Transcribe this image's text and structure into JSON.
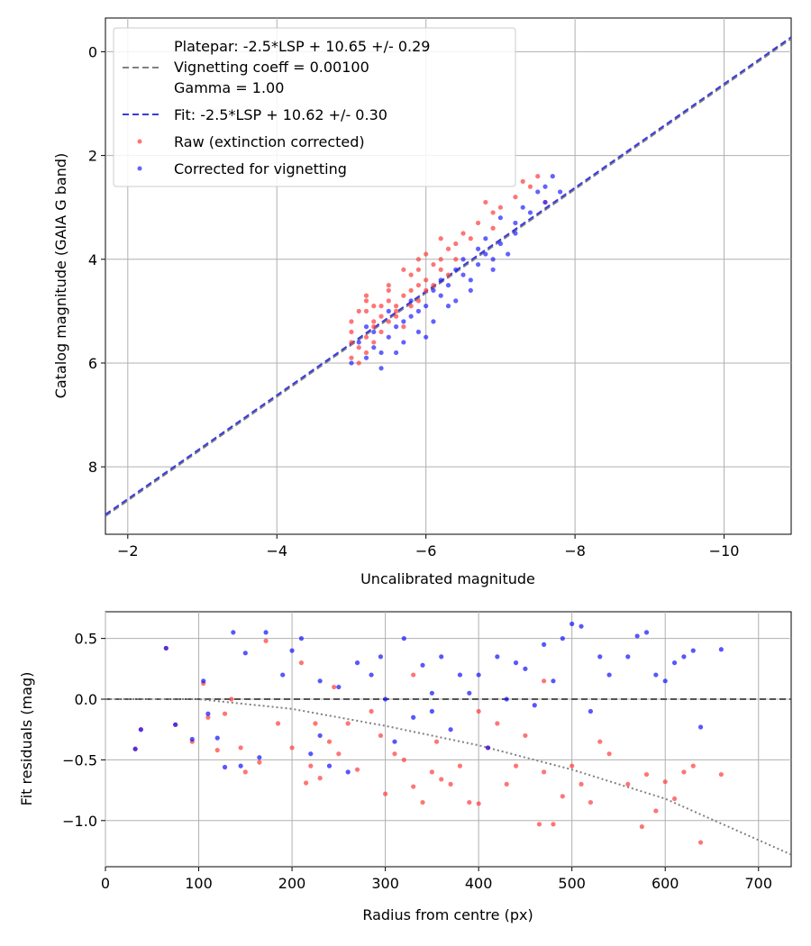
{
  "chart_data": [
    {
      "type": "scatter",
      "xlabel": "Uncalibrated magnitude",
      "ylabel": "Catalog magnitude (GAIA G band)",
      "xlim": [
        -1.7,
        -10.9
      ],
      "ylim": [
        9.3,
        -0.65
      ],
      "x_inverted": true,
      "y_inverted": true,
      "xticks": [
        -2,
        -4,
        -6,
        -8,
        -10
      ],
      "xtick_labels": [
        "−2",
        "−4",
        "−6",
        "−8",
        "−10"
      ],
      "yticks": [
        0,
        2,
        4,
        6,
        8
      ],
      "ytick_labels": [
        "0",
        "2",
        "4",
        "6",
        "8"
      ],
      "grid": true,
      "legend_position": "upper-left",
      "lines": [
        {
          "name": "Platepar",
          "slope": 1.0,
          "intercept": 10.65,
          "color": "#808080",
          "style": "dashed",
          "legend": [
            "Platepar: -2.5*LSP + 10.65 +/- 0.29",
            "Vignetting coeff = 0.00100",
            "Gamma = 1.00"
          ]
        },
        {
          "name": "Fit",
          "slope": 1.0,
          "intercept": 10.62,
          "color": "#3a3ae0",
          "style": "dashed",
          "legend": [
            "Fit: -2.5*LSP + 10.62 +/- 0.30"
          ]
        }
      ],
      "series": [
        {
          "name": "Raw (extinction corrected)",
          "color": "#ff3b3b",
          "points": [
            [
              -5.0,
              5.9
            ],
            [
              -5.1,
              5.7
            ],
            [
              -5.2,
              5.5
            ],
            [
              -5.0,
              5.4
            ],
            [
              -5.3,
              5.2
            ],
            [
              -5.2,
              5.0
            ],
            [
              -5.4,
              4.9
            ],
            [
              -5.5,
              4.8
            ],
            [
              -5.3,
              5.6
            ],
            [
              -5.6,
              5.1
            ],
            [
              -5.7,
              4.7
            ],
            [
              -5.8,
              4.6
            ],
            [
              -5.6,
              4.9
            ],
            [
              -5.9,
              4.5
            ],
            [
              -6.0,
              4.4
            ],
            [
              -5.9,
              4.2
            ],
            [
              -6.1,
              4.1
            ],
            [
              -6.2,
              4.0
            ],
            [
              -6.0,
              4.6
            ],
            [
              -5.7,
              5.3
            ],
            [
              -5.4,
              5.4
            ],
            [
              -5.1,
              5.0
            ],
            [
              -5.2,
              4.8
            ],
            [
              -5.5,
              4.6
            ],
            [
              -5.8,
              4.3
            ],
            [
              -6.3,
              3.8
            ],
            [
              -6.4,
              3.7
            ],
            [
              -6.5,
              3.5
            ],
            [
              -6.7,
              3.3
            ],
            [
              -6.9,
              3.1
            ],
            [
              -7.0,
              3.0
            ],
            [
              -7.2,
              2.8
            ],
            [
              -7.4,
              2.6
            ],
            [
              -7.5,
              2.4
            ],
            [
              -6.6,
              3.6
            ],
            [
              -6.2,
              4.2
            ],
            [
              -5.9,
              4.8
            ],
            [
              -5.6,
              5.0
            ],
            [
              -5.3,
              5.3
            ],
            [
              -5.0,
              5.6
            ],
            [
              -5.1,
              6.0
            ],
            [
              -5.4,
              5.1
            ],
            [
              -5.8,
              4.9
            ],
            [
              -6.1,
              4.5
            ],
            [
              -6.3,
              4.3
            ],
            [
              -5.5,
              4.5
            ],
            [
              -5.2,
              4.7
            ],
            [
              -5.9,
              4.0
            ],
            [
              -6.0,
              3.9
            ],
            [
              -6.4,
              4.0
            ],
            [
              -5.7,
              4.2
            ],
            [
              -5.5,
              5.2
            ],
            [
              -5.3,
              4.9
            ],
            [
              -6.2,
              3.6
            ],
            [
              -6.8,
              2.9
            ],
            [
              -7.6,
              2.9
            ],
            [
              -7.3,
              2.5
            ],
            [
              -6.9,
              3.4
            ],
            [
              -5.0,
              5.2
            ],
            [
              -5.2,
              5.8
            ]
          ]
        },
        {
          "name": "Corrected for vignetting",
          "color": "#2020ff",
          "points": [
            [
              -5.0,
              6.0
            ],
            [
              -5.2,
              5.9
            ],
            [
              -5.3,
              5.7
            ],
            [
              -5.5,
              5.5
            ],
            [
              -5.6,
              5.3
            ],
            [
              -5.8,
              5.1
            ],
            [
              -6.0,
              4.9
            ],
            [
              -6.2,
              4.7
            ],
            [
              -6.3,
              4.5
            ],
            [
              -6.5,
              4.3
            ],
            [
              -6.7,
              4.1
            ],
            [
              -6.8,
              3.9
            ],
            [
              -7.0,
              3.7
            ],
            [
              -7.2,
              3.5
            ],
            [
              -7.4,
              3.1
            ],
            [
              -7.6,
              2.9
            ],
            [
              -7.8,
              2.7
            ],
            [
              -7.7,
              2.4
            ],
            [
              -7.5,
              2.7
            ],
            [
              -5.4,
              6.1
            ],
            [
              -5.7,
              5.6
            ],
            [
              -5.9,
              5.4
            ],
            [
              -6.1,
              5.2
            ],
            [
              -6.4,
              4.8
            ],
            [
              -6.6,
              4.6
            ],
            [
              -6.9,
              4.2
            ],
            [
              -7.1,
              3.9
            ],
            [
              -5.1,
              5.6
            ],
            [
              -5.5,
              5.0
            ],
            [
              -5.8,
              4.8
            ],
            [
              -6.2,
              4.4
            ],
            [
              -6.5,
              4.0
            ],
            [
              -6.8,
              3.6
            ],
            [
              -7.0,
              3.2
            ],
            [
              -7.3,
              3.0
            ],
            [
              -5.6,
              5.8
            ],
            [
              -5.9,
              5.0
            ],
            [
              -6.3,
              4.9
            ],
            [
              -6.6,
              4.4
            ],
            [
              -6.0,
              5.5
            ],
            [
              -5.3,
              5.4
            ],
            [
              -6.7,
              3.8
            ],
            [
              -5.7,
              5.2
            ],
            [
              -6.1,
              4.6
            ],
            [
              -6.4,
              4.2
            ],
            [
              -5.2,
              5.3
            ],
            [
              -5.4,
              5.8
            ],
            [
              -6.9,
              4.0
            ],
            [
              -7.2,
              3.3
            ],
            [
              -7.6,
              2.6
            ]
          ]
        }
      ]
    },
    {
      "type": "scatter",
      "xlabel": "Radius from centre (px)",
      "ylabel": "Fit residuals (mag)",
      "xlim": [
        0,
        735
      ],
      "ylim": [
        -1.38,
        0.72
      ],
      "xticks": [
        0,
        100,
        200,
        300,
        400,
        500,
        600,
        700
      ],
      "xtick_labels": [
        "0",
        "100",
        "200",
        "300",
        "400",
        "500",
        "600",
        "700"
      ],
      "yticks": [
        0.5,
        0.0,
        -0.5,
        -1.0
      ],
      "ytick_labels": [
        "0.5",
        "0.0",
        "−0.5",
        "−1.0"
      ],
      "grid": true,
      "lines": [
        {
          "name": "zero",
          "points": [
            [
              0,
              0
            ],
            [
              735,
              0
            ]
          ],
          "color": "#555555",
          "style": "dashed"
        },
        {
          "name": "vignetting model",
          "points": [
            [
              0,
              0
            ],
            [
              100,
              0
            ],
            [
              200,
              -0.08
            ],
            [
              300,
              -0.22
            ],
            [
              400,
              -0.38
            ],
            [
              500,
              -0.58
            ],
            [
              600,
              -0.82
            ],
            [
              735,
              -1.28
            ]
          ],
          "color": "#808080",
          "style": "dotted"
        }
      ],
      "series": [
        {
          "name": "Raw (extinction corrected)",
          "color": "#ff3b3b",
          "points": [
            [
              32,
              -0.41
            ],
            [
              38,
              -0.25
            ],
            [
              65,
              0.42
            ],
            [
              75,
              -0.21
            ],
            [
              93,
              -0.35
            ],
            [
              105,
              0.13
            ],
            [
              110,
              -0.15
            ],
            [
              120,
              -0.42
            ],
            [
              128,
              -0.12
            ],
            [
              135,
              0.0
            ],
            [
              145,
              -0.4
            ],
            [
              150,
              -0.6
            ],
            [
              165,
              -0.52
            ],
            [
              172,
              0.48
            ],
            [
              185,
              -0.2
            ],
            [
              200,
              -0.4
            ],
            [
              210,
              0.3
            ],
            [
              215,
              -0.69
            ],
            [
              220,
              -0.55
            ],
            [
              230,
              -0.65
            ],
            [
              240,
              -0.35
            ],
            [
              250,
              -0.45
            ],
            [
              260,
              -0.2
            ],
            [
              270,
              -0.58
            ],
            [
              285,
              -0.1
            ],
            [
              295,
              -0.3
            ],
            [
              300,
              -0.78
            ],
            [
              310,
              -0.45
            ],
            [
              320,
              -0.5
            ],
            [
              330,
              -0.72
            ],
            [
              340,
              -0.85
            ],
            [
              350,
              -0.6
            ],
            [
              360,
              -0.66
            ],
            [
              370,
              -0.7
            ],
            [
              380,
              -0.55
            ],
            [
              390,
              -0.85
            ],
            [
              400,
              -0.86
            ],
            [
              410,
              -0.4
            ],
            [
              420,
              -0.2
            ],
            [
              430,
              -0.7
            ],
            [
              440,
              -0.55
            ],
            [
              450,
              -0.3
            ],
            [
              465,
              -1.03
            ],
            [
              470,
              -0.6
            ],
            [
              480,
              -1.03
            ],
            [
              490,
              -0.8
            ],
            [
              500,
              -0.55
            ],
            [
              510,
              -0.7
            ],
            [
              520,
              -0.85
            ],
            [
              530,
              -0.35
            ],
            [
              540,
              -0.45
            ],
            [
              560,
              -0.7
            ],
            [
              575,
              -1.05
            ],
            [
              580,
              -0.62
            ],
            [
              590,
              -0.92
            ],
            [
              600,
              -0.68
            ],
            [
              610,
              -0.82
            ],
            [
              620,
              -0.6
            ],
            [
              630,
              -0.55
            ],
            [
              638,
              -1.18
            ],
            [
              660,
              -0.62
            ],
            [
              245,
              0.1
            ],
            [
              330,
              0.2
            ],
            [
              400,
              -0.1
            ],
            [
              470,
              0.15
            ],
            [
              225,
              -0.2
            ],
            [
              355,
              -0.35
            ]
          ]
        },
        {
          "name": "Corrected for vignetting",
          "color": "#1010ff",
          "points": [
            [
              32,
              -0.41
            ],
            [
              38,
              -0.25
            ],
            [
              65,
              0.42
            ],
            [
              75,
              -0.21
            ],
            [
              93,
              -0.33
            ],
            [
              105,
              0.15
            ],
            [
              110,
              -0.12
            ],
            [
              120,
              -0.32
            ],
            [
              128,
              -0.56
            ],
            [
              137,
              0.55
            ],
            [
              145,
              -0.55
            ],
            [
              150,
              0.38
            ],
            [
              165,
              -0.48
            ],
            [
              172,
              0.55
            ],
            [
              190,
              0.2
            ],
            [
              200,
              0.4
            ],
            [
              210,
              0.5
            ],
            [
              220,
              -0.45
            ],
            [
              230,
              0.15
            ],
            [
              240,
              -0.55
            ],
            [
              250,
              0.1
            ],
            [
              260,
              -0.6
            ],
            [
              270,
              0.3
            ],
            [
              285,
              0.2
            ],
            [
              295,
              0.35
            ],
            [
              310,
              -0.35
            ],
            [
              320,
              0.5
            ],
            [
              330,
              -0.15
            ],
            [
              340,
              0.28
            ],
            [
              350,
              0.05
            ],
            [
              360,
              0.35
            ],
            [
              370,
              -0.25
            ],
            [
              380,
              0.2
            ],
            [
              390,
              0.05
            ],
            [
              400,
              0.2
            ],
            [
              410,
              -0.4
            ],
            [
              420,
              0.35
            ],
            [
              430,
              0.0
            ],
            [
              440,
              0.3
            ],
            [
              450,
              0.25
            ],
            [
              460,
              -0.05
            ],
            [
              470,
              0.45
            ],
            [
              480,
              0.15
            ],
            [
              490,
              0.5
            ],
            [
              500,
              0.62
            ],
            [
              510,
              0.6
            ],
            [
              520,
              -0.1
            ],
            [
              530,
              0.35
            ],
            [
              540,
              0.2
            ],
            [
              560,
              0.35
            ],
            [
              570,
              0.52
            ],
            [
              580,
              0.55
            ],
            [
              590,
              0.2
            ],
            [
              600,
              0.15
            ],
            [
              610,
              0.3
            ],
            [
              620,
              0.35
            ],
            [
              630,
              0.4
            ],
            [
              638,
              -0.23
            ],
            [
              660,
              0.41
            ],
            [
              230,
              -0.3
            ],
            [
              300,
              0.0
            ],
            [
              350,
              -0.1
            ]
          ]
        }
      ]
    }
  ],
  "legend": {
    "platepar_lines": [
      "Platepar: -2.5*LSP + 10.65 +/- 0.29",
      "Vignetting coeff = 0.00100",
      "Gamma = 1.00"
    ],
    "fit": "Fit: -2.5*LSP + 10.62 +/- 0.30",
    "raw": "Raw (extinction corrected)",
    "corrected": "Corrected for vignetting"
  }
}
